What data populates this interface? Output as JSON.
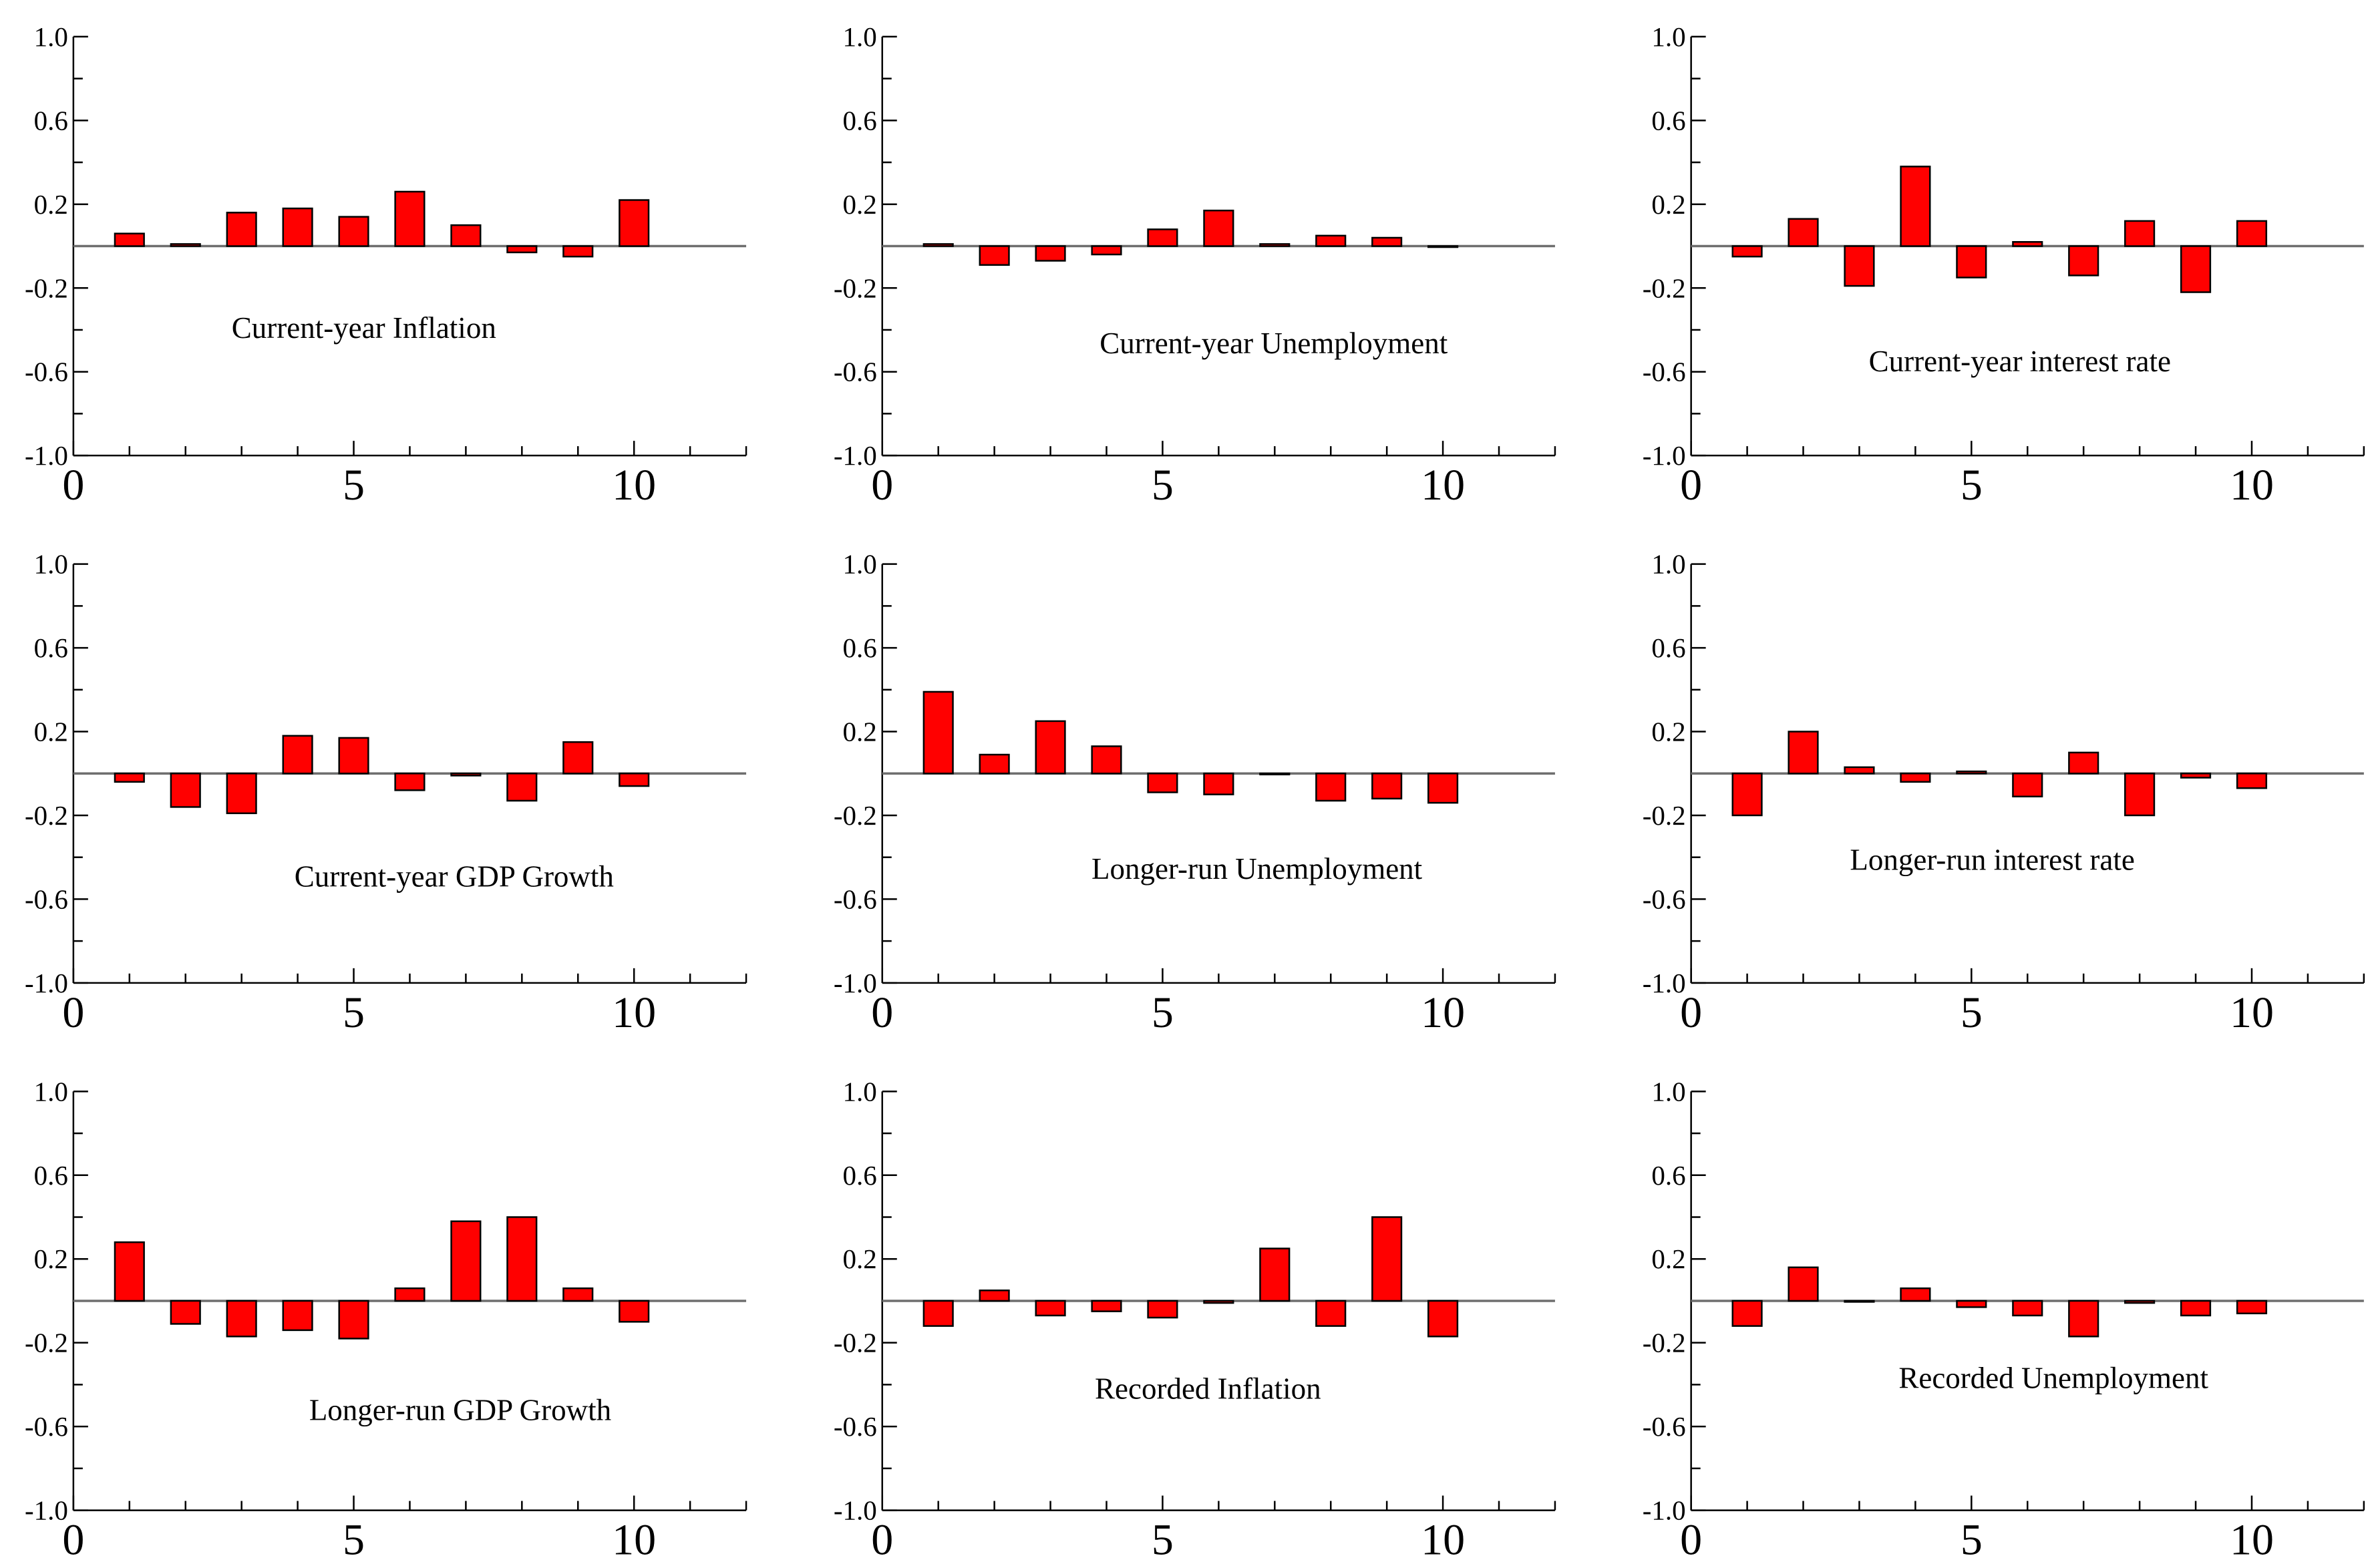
{
  "bar_color": "#ff0000",
  "zero_line_color": "#6e6e6e",
  "chart_data": [
    {
      "type": "bar",
      "title": "Current-year Inflation",
      "xlim": [
        0,
        12
      ],
      "ylim": [
        -1.0,
        1.0
      ],
      "x_ticks": [
        "0",
        "5",
        "10"
      ],
      "y_ticks": [
        "1.0",
        "0.6",
        "0.2",
        "-0.2",
        "-0.6",
        "-1.0"
      ],
      "x": [
        1,
        2,
        3,
        4,
        5,
        6,
        7,
        8,
        9,
        10
      ],
      "values": [
        0.06,
        0.01,
        0.16,
        0.18,
        0.14,
        0.26,
        0.1,
        -0.03,
        -0.05,
        0.22
      ]
    },
    {
      "type": "bar",
      "title": "Current-year Unemployment",
      "xlim": [
        0,
        12
      ],
      "ylim": [
        -1.0,
        1.0
      ],
      "x_ticks": [
        "0",
        "5",
        "10"
      ],
      "y_ticks": [
        "1.0",
        "0.6",
        "0.2",
        "-0.2",
        "-0.6",
        "-1.0"
      ],
      "x": [
        1,
        2,
        3,
        4,
        5,
        6,
        7,
        8,
        9,
        10
      ],
      "values": [
        0.01,
        -0.09,
        -0.07,
        -0.04,
        0.08,
        0.17,
        0.01,
        0.05,
        0.04,
        0.0
      ]
    },
    {
      "type": "bar",
      "title": "Current-year interest rate",
      "xlim": [
        0,
        12
      ],
      "ylim": [
        -1.0,
        1.0
      ],
      "x_ticks": [
        "0",
        "5",
        "10"
      ],
      "y_ticks": [
        "1.0",
        "0.6",
        "0.2",
        "-0.2",
        "-0.6",
        "-1.0"
      ],
      "x": [
        1,
        2,
        3,
        4,
        5,
        6,
        7,
        8,
        9,
        10
      ],
      "values": [
        -0.05,
        0.13,
        -0.19,
        0.38,
        -0.15,
        0.02,
        -0.14,
        0.12,
        -0.22,
        0.12
      ]
    },
    {
      "type": "bar",
      "title": "Current-year GDP Growth",
      "xlim": [
        0,
        12
      ],
      "ylim": [
        -1.0,
        1.0
      ],
      "x_ticks": [
        "0",
        "5",
        "10"
      ],
      "y_ticks": [
        "1.0",
        "0.6",
        "0.2",
        "-0.2",
        "-0.6",
        "-1.0"
      ],
      "x": [
        1,
        2,
        3,
        4,
        5,
        6,
        7,
        8,
        9,
        10
      ],
      "values": [
        -0.04,
        -0.16,
        -0.19,
        0.18,
        0.17,
        -0.08,
        -0.01,
        -0.13,
        0.15,
        -0.06
      ]
    },
    {
      "type": "bar",
      "title": "Longer-run Unemployment",
      "xlim": [
        0,
        12
      ],
      "ylim": [
        -1.0,
        1.0
      ],
      "x_ticks": [
        "0",
        "5",
        "10"
      ],
      "y_ticks": [
        "1.0",
        "0.6",
        "0.2",
        "-0.2",
        "-0.6",
        "-1.0"
      ],
      "x": [
        1,
        2,
        3,
        4,
        5,
        6,
        7,
        8,
        9,
        10
      ],
      "values": [
        0.39,
        0.09,
        0.25,
        0.13,
        -0.09,
        -0.1,
        0.0,
        -0.13,
        -0.12,
        -0.14
      ]
    },
    {
      "type": "bar",
      "title": "Longer-run interest rate",
      "xlim": [
        0,
        12
      ],
      "ylim": [
        -1.0,
        1.0
      ],
      "x_ticks": [
        "0",
        "5",
        "10"
      ],
      "y_ticks": [
        "1.0",
        "0.6",
        "0.2",
        "-0.2",
        "-0.6",
        "-1.0"
      ],
      "x": [
        1,
        2,
        3,
        4,
        5,
        6,
        7,
        8,
        9,
        10
      ],
      "values": [
        -0.2,
        0.2,
        0.03,
        -0.04,
        0.01,
        -0.11,
        0.1,
        -0.2,
        -0.02,
        -0.07
      ]
    },
    {
      "type": "bar",
      "title": "Longer-run GDP Growth",
      "xlim": [
        0,
        12
      ],
      "ylim": [
        -1.0,
        1.0
      ],
      "x_ticks": [
        "0",
        "5",
        "10"
      ],
      "y_ticks": [
        "1.0",
        "0.6",
        "0.2",
        "-0.2",
        "-0.6",
        "-1.0"
      ],
      "x": [
        1,
        2,
        3,
        4,
        5,
        6,
        7,
        8,
        9,
        10
      ],
      "values": [
        0.28,
        -0.11,
        -0.17,
        -0.14,
        -0.18,
        0.06,
        0.38,
        0.4,
        0.06,
        -0.1
      ]
    },
    {
      "type": "bar",
      "title": "Recorded Inflation",
      "xlim": [
        0,
        12
      ],
      "ylim": [
        -1.0,
        1.0
      ],
      "x_ticks": [
        "0",
        "5",
        "10"
      ],
      "y_ticks": [
        "1.0",
        "0.6",
        "0.2",
        "-0.2",
        "-0.6",
        "-1.0"
      ],
      "x": [
        1,
        2,
        3,
        4,
        5,
        6,
        7,
        8,
        9,
        10
      ],
      "values": [
        -0.12,
        0.05,
        -0.07,
        -0.05,
        -0.08,
        -0.01,
        0.25,
        -0.12,
        0.4,
        -0.17
      ]
    },
    {
      "type": "bar",
      "title": "Recorded Unemployment",
      "xlim": [
        0,
        12
      ],
      "ylim": [
        -1.0,
        1.0
      ],
      "x_ticks": [
        "0",
        "5",
        "10"
      ],
      "y_ticks": [
        "1.0",
        "0.6",
        "0.2",
        "-0.2",
        "-0.6",
        "-1.0"
      ],
      "x": [
        1,
        2,
        3,
        4,
        5,
        6,
        7,
        8,
        9,
        10
      ],
      "values": [
        -0.12,
        0.16,
        0.0,
        0.06,
        -0.03,
        -0.07,
        -0.17,
        -0.01,
        -0.07,
        -0.06
      ]
    }
  ]
}
